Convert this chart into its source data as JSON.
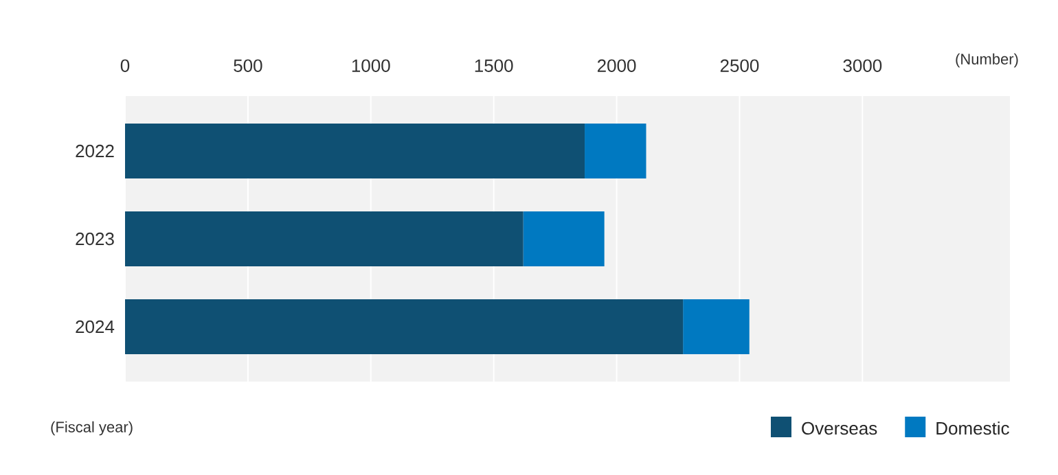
{
  "chart_data": {
    "type": "bar",
    "orientation": "horizontal",
    "stacked": true,
    "xlabel": "(Number)",
    "ylabel": "(Fiscal year)",
    "categories": [
      "2022",
      "2023",
      "2024"
    ],
    "series": [
      {
        "name": "Overseas",
        "color": "#0f5073",
        "values": [
          1870,
          1620,
          2270
        ]
      },
      {
        "name": "Domestic",
        "color": "#0079c1",
        "values": [
          250,
          330,
          270
        ]
      }
    ],
    "xlim": [
      0,
      3600
    ],
    "xticks": [
      0,
      500,
      1000,
      1500,
      2000,
      2500,
      3000
    ],
    "grid": "x",
    "legend": "bottom right"
  }
}
